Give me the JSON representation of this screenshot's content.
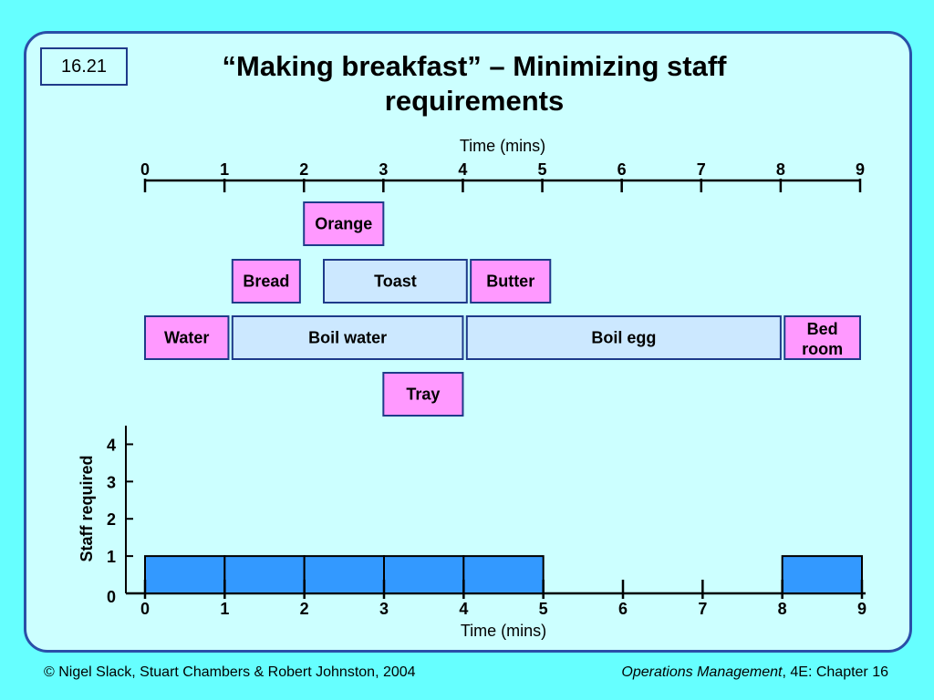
{
  "slide": {
    "number": "16.21",
    "title_line1": "“Making breakfast” – Minimizing staff",
    "title_line2": "requirements"
  },
  "footer": {
    "copyright": "© Nigel Slack, Stuart Chambers & Robert Johnston, 2004",
    "book_title": "Operations Management",
    "book_suffix": ", 4E: Chapter 16"
  },
  "colors": {
    "background": "#66ffff",
    "panel": "#ccffff",
    "border": "#2a4fa8",
    "task_pink": "#ff99ff",
    "task_light": "#cce8ff",
    "bar_blue": "#3399ff"
  },
  "chart_data": [
    {
      "type": "gantt",
      "axis_label": "Time (mins)",
      "ticks": [
        "0",
        "1",
        "2",
        "3",
        "4",
        "5",
        "6",
        "7",
        "8",
        "9"
      ],
      "xlim": [
        0,
        9
      ],
      "tasks": [
        {
          "label": "Orange",
          "start": 2,
          "end": 3,
          "row": 0,
          "style": "pink"
        },
        {
          "label": "Bread",
          "start": 1.1,
          "end": 1.95,
          "row": 1,
          "style": "pink"
        },
        {
          "label": "Toast",
          "start": 2.25,
          "end": 4.05,
          "row": 1,
          "style": "light"
        },
        {
          "label": "Butter",
          "start": 4.1,
          "end": 5.1,
          "row": 1,
          "style": "pink"
        },
        {
          "label": "Water",
          "start": 0,
          "end": 1.05,
          "row": 2,
          "style": "pink"
        },
        {
          "label": "Boil water",
          "start": 1.1,
          "end": 4,
          "row": 2,
          "style": "light"
        },
        {
          "label": "Boil egg",
          "start": 4.05,
          "end": 8,
          "row": 2,
          "style": "light"
        },
        {
          "label": "Bed room",
          "label_lines": [
            "Bed",
            "room"
          ],
          "start": 8.05,
          "end": 9,
          "row": 2,
          "style": "pink"
        },
        {
          "label": "Tray",
          "start": 3,
          "end": 4,
          "row": 3,
          "style": "pink"
        }
      ]
    },
    {
      "type": "bar",
      "xlabel": "Time (mins)",
      "ylabel": "Staff required",
      "x_ticks": [
        "0",
        "1",
        "2",
        "3",
        "4",
        "5",
        "6",
        "7",
        "8",
        "9"
      ],
      "y_ticks": [
        "0",
        "1",
        "2",
        "3",
        "4"
      ],
      "xlim": [
        0,
        9
      ],
      "ylim": [
        0,
        4.5
      ],
      "bars": [
        {
          "start": 0,
          "end": 1,
          "value": 1
        },
        {
          "start": 1,
          "end": 2,
          "value": 1
        },
        {
          "start": 2,
          "end": 3,
          "value": 1
        },
        {
          "start": 3,
          "end": 4,
          "value": 1
        },
        {
          "start": 4,
          "end": 5,
          "value": 1
        },
        {
          "start": 8,
          "end": 9,
          "value": 1
        }
      ]
    }
  ]
}
